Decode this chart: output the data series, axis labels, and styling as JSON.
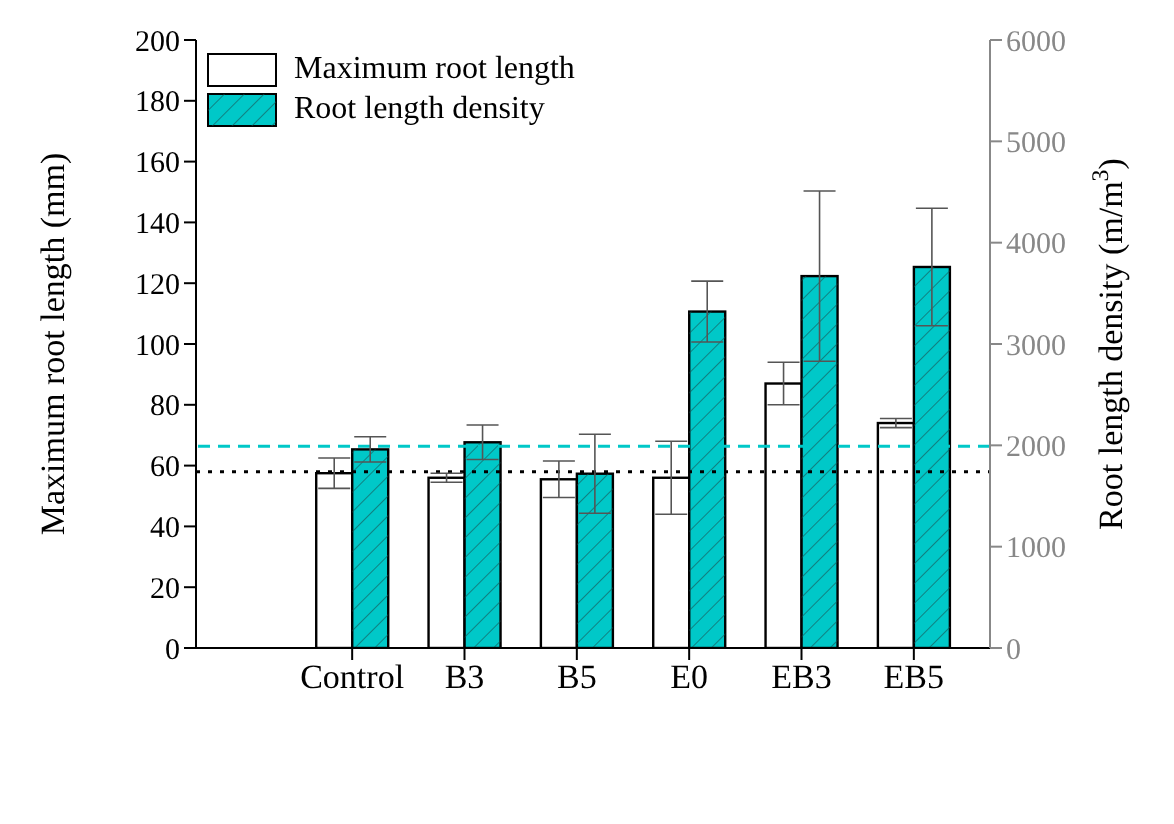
{
  "chart_data": {
    "type": "bar",
    "ylabel": "Maximum root length (mm)",
    "y2label": "Root length density (m/m$^{3}$)",
    "categories": [
      "Control",
      "B3",
      "B5",
      "E0",
      "EB3",
      "EB5"
    ],
    "series": [
      {
        "name": "Maximum root length",
        "color": "#ffffff",
        "values": [
          57.5,
          56,
          55.5,
          56,
          87,
          74
        ],
        "errors": [
          5,
          1.5,
          6,
          12,
          7,
          1.5
        ]
      },
      {
        "name": "Root length density",
        "color": "#00c8c8",
        "axis": "y2",
        "values": [
          1960,
          2030,
          1720,
          3320,
          3670,
          3760
        ],
        "errors": [
          125,
          170,
          390,
          300,
          840,
          580
        ]
      }
    ],
    "ylim": [
      0,
      200
    ],
    "yticks": [
      0,
      20,
      40,
      60,
      80,
      100,
      120,
      140,
      160,
      180,
      200
    ],
    "y2lim": [
      0,
      6000
    ],
    "y2ticks": [
      0,
      1000,
      2000,
      3000,
      4000,
      5000,
      6000
    ],
    "ref_lines": [
      {
        "axis": "y",
        "value": 58,
        "color": "#000000",
        "line_style": "dotted"
      },
      {
        "axis": "y2",
        "value": 1990,
        "color": "#00c8c8",
        "line_style": "dashed"
      }
    ],
    "legend": "top left"
  }
}
